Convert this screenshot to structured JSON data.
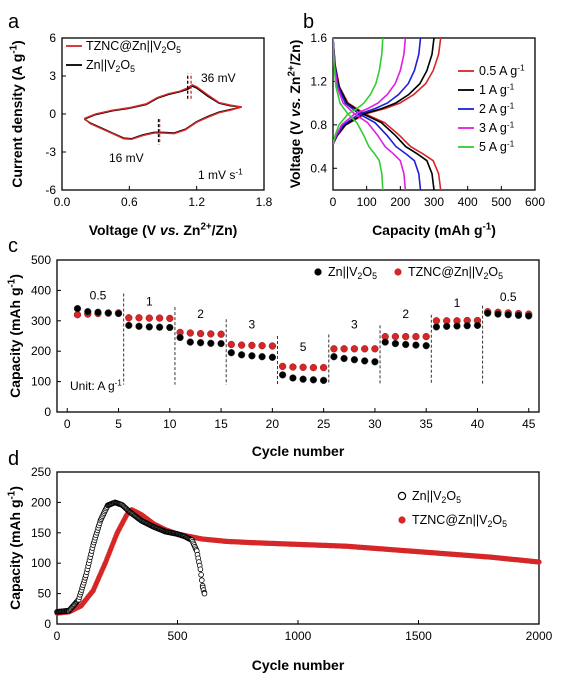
{
  "chart_data": [
    {
      "id": "a",
      "type": "line",
      "panel_label": "a",
      "xlabel_parts": [
        "Voltage (V ",
        "vs.",
        " Zn",
        "2+",
        "/Zn)"
      ],
      "ylabel_parts": [
        "Current density (A g",
        "-1",
        ")"
      ],
      "xlim": [
        0,
        1.8
      ],
      "ylim": [
        -6,
        6
      ],
      "xticks": [
        "0.0",
        "0.6",
        "1.2",
        "1.8"
      ],
      "yticks": [
        "-6",
        "-3",
        "0",
        "3",
        "6"
      ],
      "legend": [
        {
          "label_parts": [
            "TZNC@Zn||V",
            "2",
            "O",
            "5"
          ],
          "color": "#d62728"
        },
        {
          "label_parts": [
            "Zn||V",
            "2",
            "O",
            "5"
          ],
          "color": "#000000"
        }
      ],
      "annotations": {
        "anodic_shift": "36 mV",
        "cathodic_shift": "16 mV",
        "scan_rate_parts": [
          "1 mV s",
          "-1"
        ]
      },
      "series": [
        {
          "name": "Zn||V2O5",
          "color": "#000000",
          "upper": [
            [
              0.2,
              -0.4
            ],
            [
              0.3,
              -0.05
            ],
            [
              0.45,
              0.25
            ],
            [
              0.6,
              0.45
            ],
            [
              0.75,
              0.75
            ],
            [
              0.85,
              1.25
            ],
            [
              0.95,
              1.55
            ],
            [
              1.05,
              1.75
            ],
            [
              1.12,
              1.95
            ],
            [
              1.16,
              2.2
            ],
            [
              1.2,
              2.05
            ],
            [
              1.3,
              1.4
            ],
            [
              1.4,
              0.85
            ],
            [
              1.5,
              0.65
            ],
            [
              1.6,
              0.55
            ]
          ],
          "lower": [
            [
              1.6,
              0.55
            ],
            [
              1.5,
              0.35
            ],
            [
              1.4,
              0.15
            ],
            [
              1.3,
              -0.2
            ],
            [
              1.2,
              -0.6
            ],
            [
              1.1,
              -1.2
            ],
            [
              1.0,
              -1.5
            ],
            [
              0.9,
              -1.45
            ],
            [
              0.82,
              -1.45
            ],
            [
              0.72,
              -1.65
            ],
            [
              0.62,
              -1.95
            ],
            [
              0.55,
              -1.9
            ],
            [
              0.45,
              -1.5
            ],
            [
              0.35,
              -1.1
            ],
            [
              0.25,
              -0.7
            ],
            [
              0.2,
              -0.4
            ]
          ]
        },
        {
          "name": "TZNC@Zn||V2O5",
          "color": "#d62728",
          "upper": [
            [
              0.2,
              -0.35
            ],
            [
              0.3,
              0.0
            ],
            [
              0.45,
              0.3
            ],
            [
              0.6,
              0.5
            ],
            [
              0.75,
              0.8
            ],
            [
              0.85,
              1.3
            ],
            [
              0.95,
              1.6
            ],
            [
              1.05,
              1.8
            ],
            [
              1.12,
              2.05
            ],
            [
              1.16,
              2.3
            ],
            [
              1.2,
              2.15
            ],
            [
              1.3,
              1.5
            ],
            [
              1.4,
              0.9
            ],
            [
              1.5,
              0.7
            ],
            [
              1.6,
              0.55
            ]
          ],
          "lower": [
            [
              1.6,
              0.55
            ],
            [
              1.5,
              0.3
            ],
            [
              1.4,
              0.1
            ],
            [
              1.3,
              -0.25
            ],
            [
              1.2,
              -0.65
            ],
            [
              1.1,
              -1.25
            ],
            [
              1.0,
              -1.55
            ],
            [
              0.9,
              -1.5
            ],
            [
              0.82,
              -1.5
            ],
            [
              0.72,
              -1.7
            ],
            [
              0.62,
              -2.0
            ],
            [
              0.55,
              -1.95
            ],
            [
              0.45,
              -1.55
            ],
            [
              0.35,
              -1.15
            ],
            [
              0.25,
              -0.75
            ],
            [
              0.2,
              -0.35
            ]
          ]
        }
      ]
    },
    {
      "id": "b",
      "type": "line",
      "panel_label": "b",
      "xlabel_parts": [
        "Capacity (mAh g",
        "-1",
        ")"
      ],
      "ylabel_parts": [
        "Voltage (V ",
        "vs.",
        " Zn",
        "2+",
        "/Zn)"
      ],
      "xlim": [
        0,
        600
      ],
      "ylim": [
        0.2,
        1.6
      ],
      "xticks": [
        "0",
        "100",
        "200",
        "300",
        "400",
        "500",
        "600"
      ],
      "yticks": [
        "0.4",
        "0.8",
        "1.2",
        "1.6"
      ],
      "legend": [
        {
          "label_parts": [
            "0.5 A g",
            "-1"
          ],
          "color": "#d62728"
        },
        {
          "label_parts": [
            "1 A g",
            "-1"
          ],
          "color": "#000000"
        },
        {
          "label_parts": [
            "2 A g",
            "-1"
          ],
          "color": "#1f1fd6"
        },
        {
          "label_parts": [
            "3 A g",
            "-1"
          ],
          "color": "#e020e0"
        },
        {
          "label_parts": [
            "5 A g",
            "-1"
          ],
          "color": "#33cc33"
        }
      ],
      "series": [
        {
          "name": "0.5 A g-1",
          "color": "#d62728",
          "capacity": 320
        },
        {
          "name": "1 A g-1",
          "color": "#000000",
          "capacity": 300
        },
        {
          "name": "2 A g-1",
          "color": "#1f1fd6",
          "capacity": 260
        },
        {
          "name": "3 A g-1",
          "color": "#e020e0",
          "capacity": 215
        },
        {
          "name": "5 A g-1",
          "color": "#33cc33",
          "capacity": 148
        }
      ]
    },
    {
      "id": "c",
      "type": "scatter",
      "panel_label": "c",
      "xlabel": "Cycle number",
      "ylabel_parts": [
        "Capacity (mAh g",
        "-1",
        ")"
      ],
      "xlim": [
        -1,
        46
      ],
      "ylim": [
        0,
        500
      ],
      "xticks": [
        "0",
        "5",
        "10",
        "15",
        "20",
        "25",
        "30",
        "35",
        "40",
        "45"
      ],
      "yticks": [
        "0",
        "100",
        "200",
        "300",
        "400",
        "500"
      ],
      "rate_labels": [
        "0.5",
        "1",
        "2",
        "3",
        "5",
        "3",
        "2",
        "1",
        "0.5"
      ],
      "unit_label_parts": [
        "Unit: A g",
        "-1"
      ],
      "legend": [
        {
          "label_parts": [
            "Zn||V",
            "2",
            "O",
            "5"
          ],
          "color": "#000000"
        },
        {
          "label_parts": [
            "TZNC@Zn||V",
            "2",
            "O",
            "5"
          ],
          "color": "#d62728"
        }
      ],
      "series": [
        {
          "name": "Zn||V2O5",
          "color": "#000000",
          "x": [
            1,
            2,
            3,
            4,
            5,
            6,
            7,
            8,
            9,
            10,
            11,
            12,
            13,
            14,
            15,
            16,
            17,
            18,
            19,
            20,
            21,
            22,
            23,
            24,
            25,
            26,
            27,
            28,
            29,
            30,
            31,
            32,
            33,
            34,
            35,
            36,
            37,
            38,
            39,
            40,
            41,
            42,
            43,
            44,
            45
          ],
          "y": [
            340,
            330,
            328,
            326,
            324,
            285,
            282,
            280,
            279,
            278,
            245,
            230,
            228,
            226,
            225,
            195,
            188,
            185,
            182,
            180,
            122,
            112,
            108,
            106,
            104,
            182,
            176,
            172,
            168,
            165,
            230,
            225,
            222,
            220,
            218,
            280,
            282,
            283,
            284,
            285,
            325,
            322,
            320,
            318,
            316
          ]
        },
        {
          "name": "TZNC@Zn||V2O5",
          "color": "#d62728",
          "x": [
            1,
            2,
            3,
            4,
            5,
            6,
            7,
            8,
            9,
            10,
            11,
            12,
            13,
            14,
            15,
            16,
            17,
            18,
            19,
            20,
            21,
            22,
            23,
            24,
            25,
            26,
            27,
            28,
            29,
            30,
            31,
            32,
            33,
            34,
            35,
            36,
            37,
            38,
            39,
            40,
            41,
            42,
            43,
            44,
            45
          ],
          "y": [
            320,
            322,
            324,
            325,
            326,
            310,
            310,
            309,
            309,
            308,
            262,
            260,
            258,
            257,
            256,
            222,
            220,
            219,
            218,
            217,
            150,
            148,
            147,
            146,
            146,
            208,
            208,
            208,
            208,
            208,
            248,
            248,
            248,
            248,
            248,
            300,
            300,
            300,
            301,
            301,
            330,
            328,
            326,
            324,
            322
          ]
        }
      ]
    },
    {
      "id": "d",
      "type": "scatter",
      "panel_label": "d",
      "xlabel": "Cycle number",
      "ylabel_parts": [
        "Capacity (mAh g",
        "-1",
        ")"
      ],
      "xlim": [
        0,
        2000
      ],
      "ylim": [
        0,
        250
      ],
      "xticks": [
        "0",
        "500",
        "1000",
        "1500",
        "2000"
      ],
      "yticks": [
        "0",
        "50",
        "100",
        "150",
        "200",
        "250"
      ],
      "legend": [
        {
          "label_parts": [
            "Zn||V",
            "2",
            "O",
            "5"
          ],
          "color": "#000000"
        },
        {
          "label_parts": [
            "TZNC@Zn||V",
            "2",
            "O",
            "5"
          ],
          "color": "#d62728"
        }
      ],
      "series": [
        {
          "name": "Zn||V2O5",
          "color": "#000000",
          "points": [
            [
              0,
              20
            ],
            [
              50,
              22
            ],
            [
              90,
              40
            ],
            [
              120,
              80
            ],
            [
              150,
              130
            ],
            [
              180,
              170
            ],
            [
              210,
              195
            ],
            [
              240,
              200
            ],
            [
              270,
              196
            ],
            [
              300,
              185
            ],
            [
              350,
              170
            ],
            [
              400,
              160
            ],
            [
              450,
              152
            ],
            [
              500,
              148
            ],
            [
              530,
              144
            ],
            [
              560,
              138
            ],
            [
              580,
              120
            ],
            [
              595,
              90
            ],
            [
              605,
              60
            ],
            [
              612,
              50
            ]
          ]
        },
        {
          "name": "TZNC@Zn||V2O5",
          "color": "#d62728",
          "points": [
            [
              0,
              18
            ],
            [
              50,
              20
            ],
            [
              100,
              30
            ],
            [
              150,
              55
            ],
            [
              200,
              100
            ],
            [
              250,
              150
            ],
            [
              290,
              180
            ],
            [
              310,
              188
            ],
            [
              350,
              180
            ],
            [
              400,
              165
            ],
            [
              450,
              155
            ],
            [
              500,
              148
            ],
            [
              600,
              140
            ],
            [
              700,
              136
            ],
            [
              800,
              134
            ],
            [
              1000,
              131
            ],
            [
              1200,
              128
            ],
            [
              1400,
              122
            ],
            [
              1600,
              116
            ],
            [
              1800,
              110
            ],
            [
              2000,
              102
            ]
          ]
        }
      ]
    }
  ]
}
